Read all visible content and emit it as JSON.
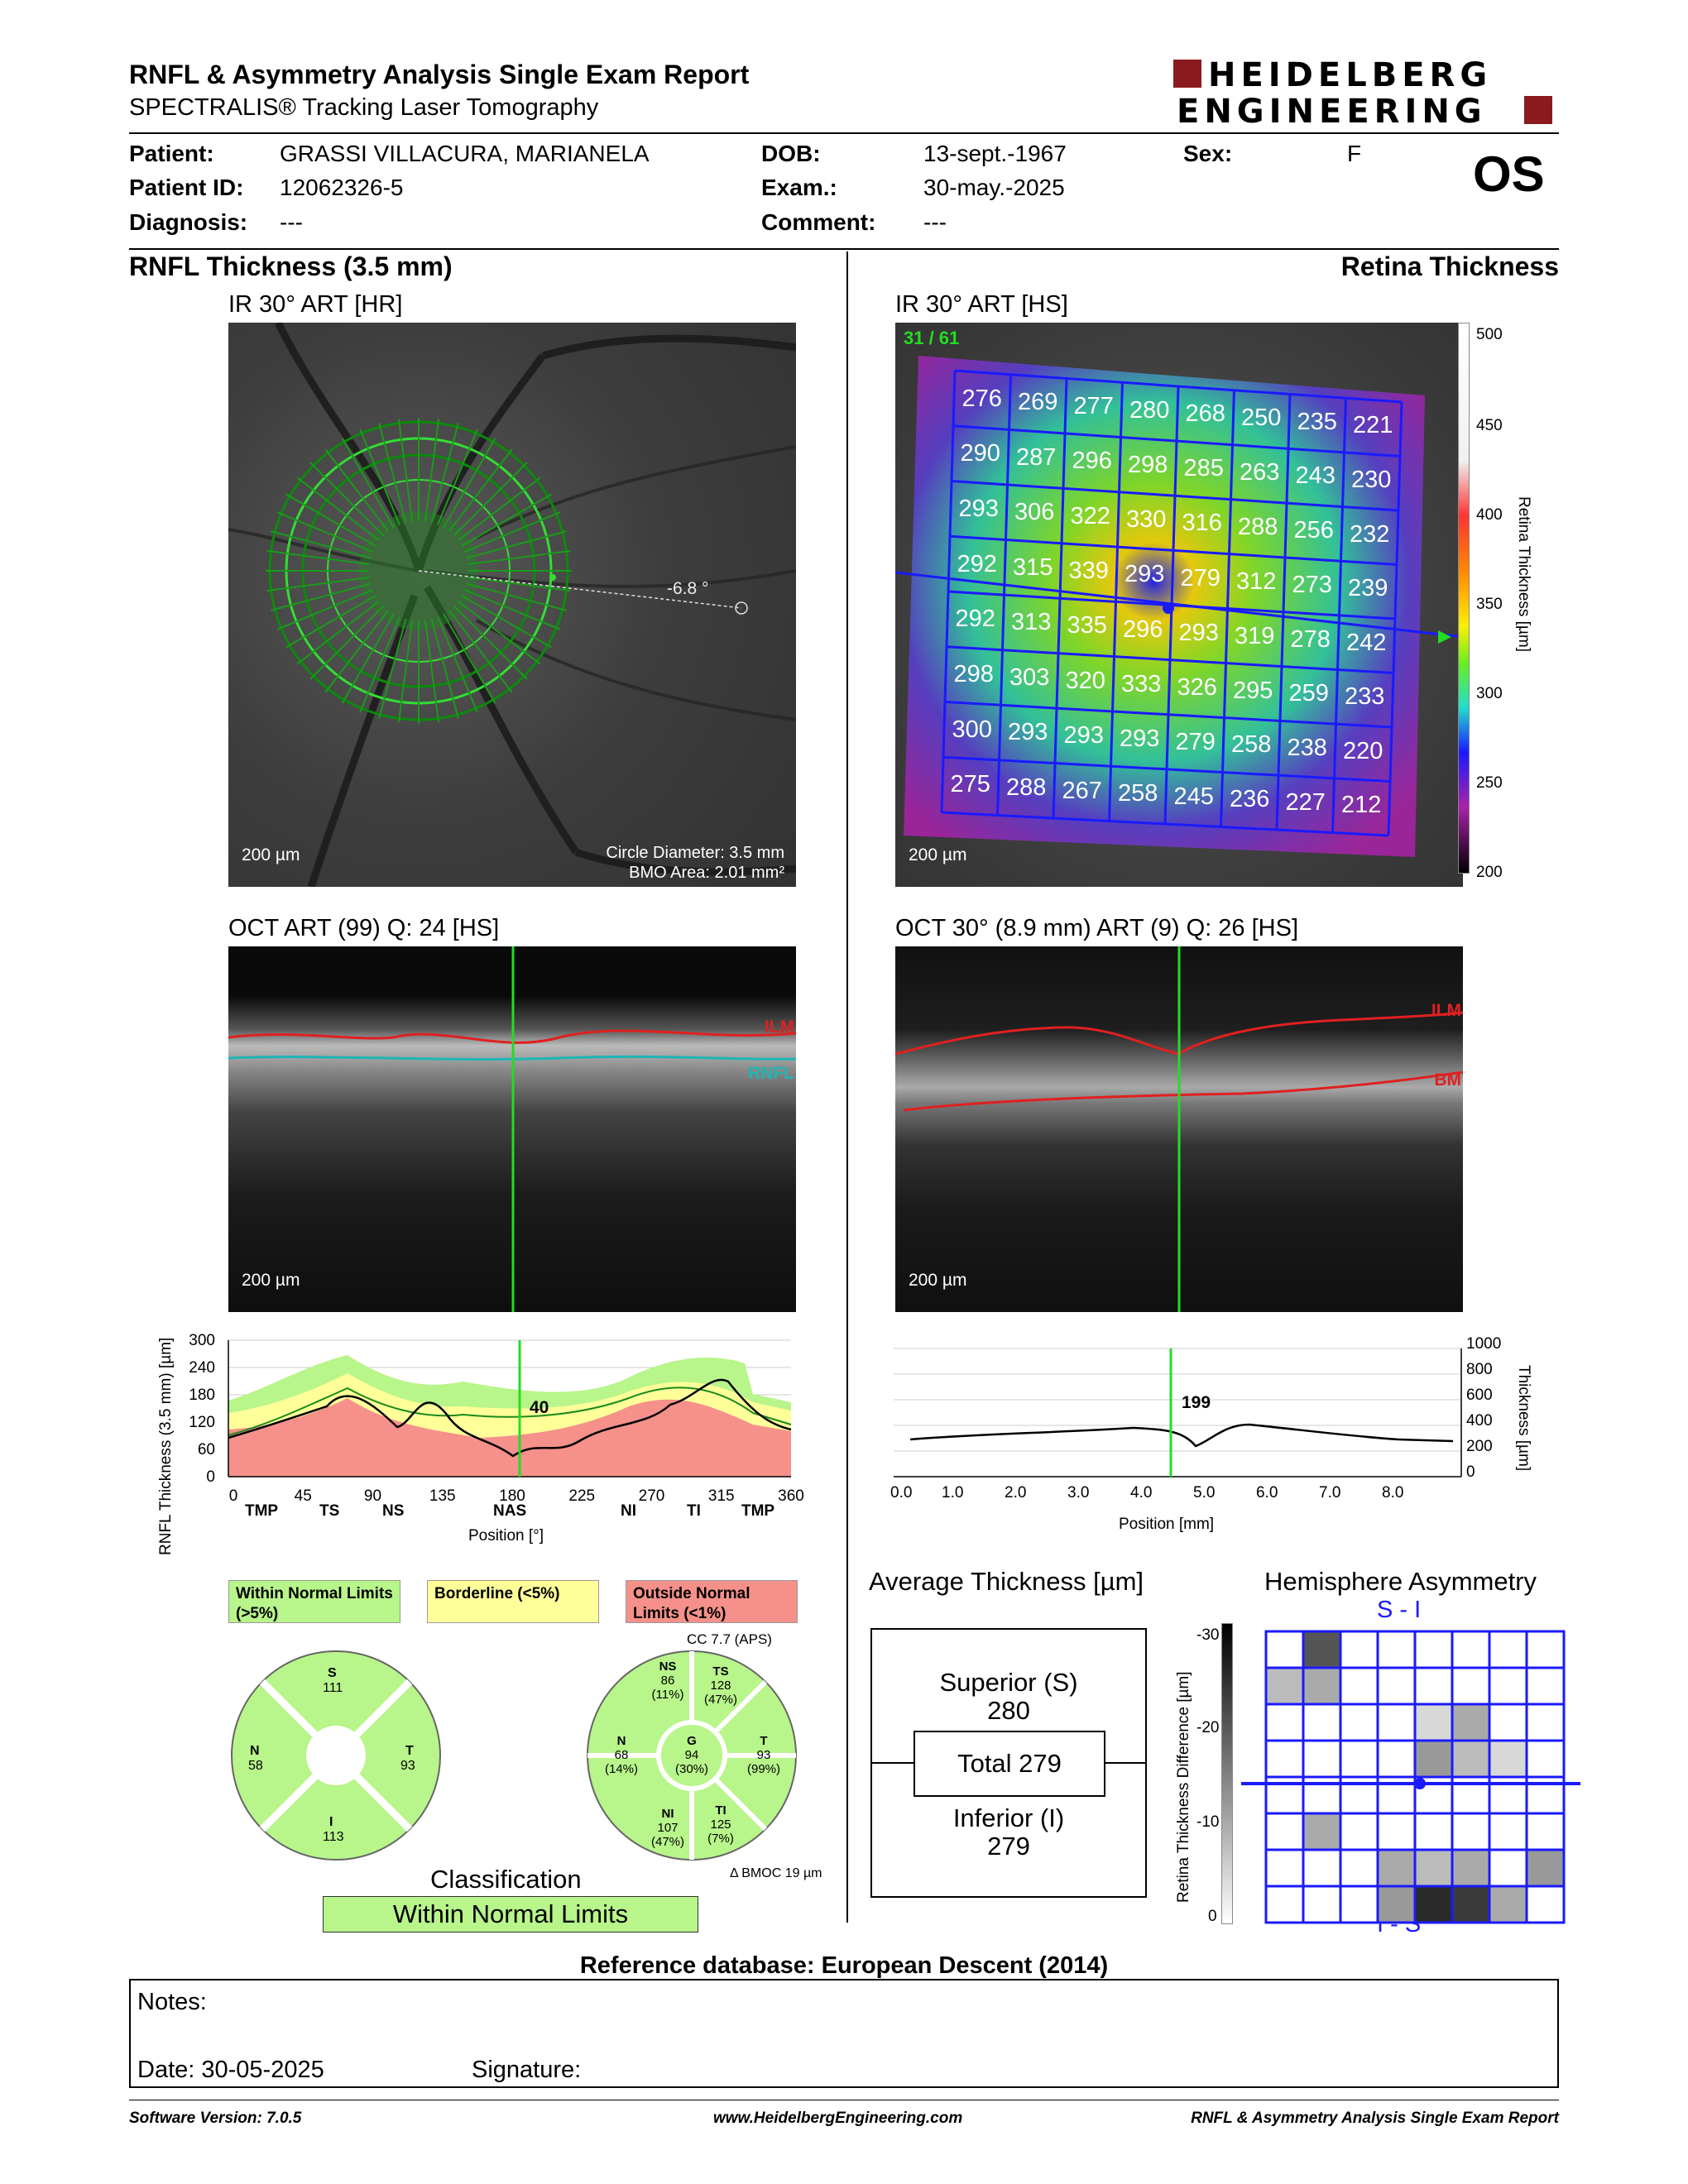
{
  "header": {
    "title": "RNFL & Asymmetry Analysis Single Exam Report",
    "subtitle": "SPECTRALIS® Tracking Laser Tomography",
    "logo_line1": "HEIDELBERG",
    "logo_line2": "ENGINEERING"
  },
  "patient": {
    "patient_label": "Patient:",
    "patient_value": "GRASSI VILLACURA, MARIANELA",
    "id_label": "Patient ID:",
    "id_value": "12062326-5",
    "diagnosis_label": "Diagnosis:",
    "diagnosis_value": "---",
    "dob_label": "DOB:",
    "dob_value": "13-sept.-1967",
    "exam_label": "Exam.:",
    "exam_value": "30-may.-2025",
    "comment_label": "Comment:",
    "comment_value": "---",
    "sex_label": "Sex:",
    "sex_value": "F",
    "eye": "OS"
  },
  "left": {
    "section_title": "RNFL Thickness (3.5 mm)",
    "ir_title": "IR 30° ART [HR]",
    "ir_scale": "200 µm",
    "ir_angle": "-6.8 °",
    "circle_diameter": "Circle Diameter: 3.5 mm",
    "bmo_area": "BMO Area: 2.01 mm²",
    "oct_title": "OCT ART (99) Q: 24 [HS]",
    "oct_scale": "200 µm",
    "ilm": "ILM",
    "rnfl": "RNFL",
    "plot_ylabel": "RNFL Thickness (3.5 mm) [µm]",
    "plot_xlabel": "Position [°]",
    "plot_marker_value": "40",
    "plot_yticks": [
      "300",
      "240",
      "180",
      "120",
      "60",
      "0"
    ],
    "plot_xticks": [
      "0",
      "45",
      "90",
      "135",
      "180",
      "225",
      "270",
      "315",
      "360"
    ],
    "plot_sectors": [
      "TMP",
      "TS",
      "NS",
      "NAS",
      "NI",
      "TI",
      "TMP"
    ],
    "legend_within": "Within Normal Limits (>5%)",
    "legend_borderline": "Borderline (<5%)",
    "legend_outside": "Outside Normal Limits (<1%)",
    "cc": "CC 7.7 (APS)",
    "bmoc": "Δ BMOC 19 µm",
    "classification_label": "Classification",
    "classification_value": "Within Normal Limits"
  },
  "quadrants": {
    "S_label": "S",
    "S_value": "111",
    "N_label": "N",
    "N_value": "58",
    "T_label": "T",
    "T_value": "93",
    "I_label": "I",
    "I_value": "113"
  },
  "sectors": {
    "NS_label": "NS",
    "NS_value": "86",
    "NS_pct": "(11%)",
    "TS_label": "TS",
    "TS_value": "128",
    "TS_pct": "(47%)",
    "N_label": "N",
    "N_value": "68",
    "N_pct": "(14%)",
    "G_label": "G",
    "G_value": "94",
    "G_pct": "(30%)",
    "T_label": "T",
    "T_value": "93",
    "T_pct": "(99%)",
    "NI_label": "NI",
    "NI_value": "107",
    "NI_pct": "(47%)",
    "TI_label": "TI",
    "TI_value": "125",
    "TI_pct": "(7%)"
  },
  "right": {
    "section_title": "Retina Thickness",
    "ir_title": "IR 30° ART [HS]",
    "ir_scale": "200 µm",
    "ir_index": "31 / 61",
    "colorbar_label": "Retina Thickness [µm]",
    "colorbar_ticks": [
      "500",
      "450",
      "400",
      "350",
      "300",
      "250",
      "200"
    ],
    "grid_values": [
      [
        276,
        269,
        277,
        280,
        268,
        250,
        235,
        221
      ],
      [
        290,
        287,
        296,
        298,
        285,
        263,
        243,
        230
      ],
      [
        293,
        306,
        322,
        330,
        316,
        288,
        256,
        232
      ],
      [
        292,
        315,
        339,
        293,
        279,
        312,
        273,
        239
      ],
      [
        292,
        313,
        335,
        296,
        293,
        319,
        278,
        242
      ],
      [
        298,
        303,
        320,
        333,
        326,
        295,
        259,
        233
      ],
      [
        300,
        293,
        293,
        293,
        279,
        258,
        238,
        220
      ],
      [
        275,
        288,
        267,
        258,
        245,
        236,
        227,
        212
      ]
    ],
    "oct_title": "OCT 30° (8.9 mm) ART (9) Q: 26 [HS]",
    "oct_scale": "200 µm",
    "ilm": "ILM",
    "bm": "BM",
    "plot_ylabel": "Thickness [µm]",
    "plot_xlabel": "Position [mm]",
    "plot_marker_value": "199",
    "plot_yticks": [
      "1000",
      "800",
      "600",
      "400",
      "200",
      "0"
    ],
    "plot_xticks": [
      "0.0",
      "1.0",
      "2.0",
      "3.0",
      "4.0",
      "5.0",
      "6.0",
      "7.0",
      "8.0"
    ],
    "avg_title": "Average Thickness [µm]",
    "superior_label": "Superior (S)",
    "superior_value": "280",
    "total_label": "Total 279",
    "inferior_label": "Inferior (I)",
    "inferior_value": "279",
    "asym_title": "Hemisphere Asymmetry",
    "asym_top": "S - I",
    "asym_bottom": "I - S",
    "asym_ylabel": "Retina Thickness Difference [µm]",
    "asym_ticks": [
      "-30",
      "-20",
      "-10",
      "0"
    ]
  },
  "footer": {
    "reference": "Reference database: European Descent (2014)",
    "notes": "Notes:",
    "date": "Date: 30-05-2025",
    "signature": "Signature:",
    "software": "Software Version: 7.0.5",
    "website": "www.HeidelbergEngineering.com",
    "report": "RNFL & Asymmetry Analysis Single Exam Report"
  },
  "colors": {
    "brand": "#8b1a1f",
    "within": "#b8f58a",
    "borderline": "#ffff99",
    "outside": "#f5918a",
    "grid": "#1a1aff",
    "marker": "#22dd22"
  }
}
